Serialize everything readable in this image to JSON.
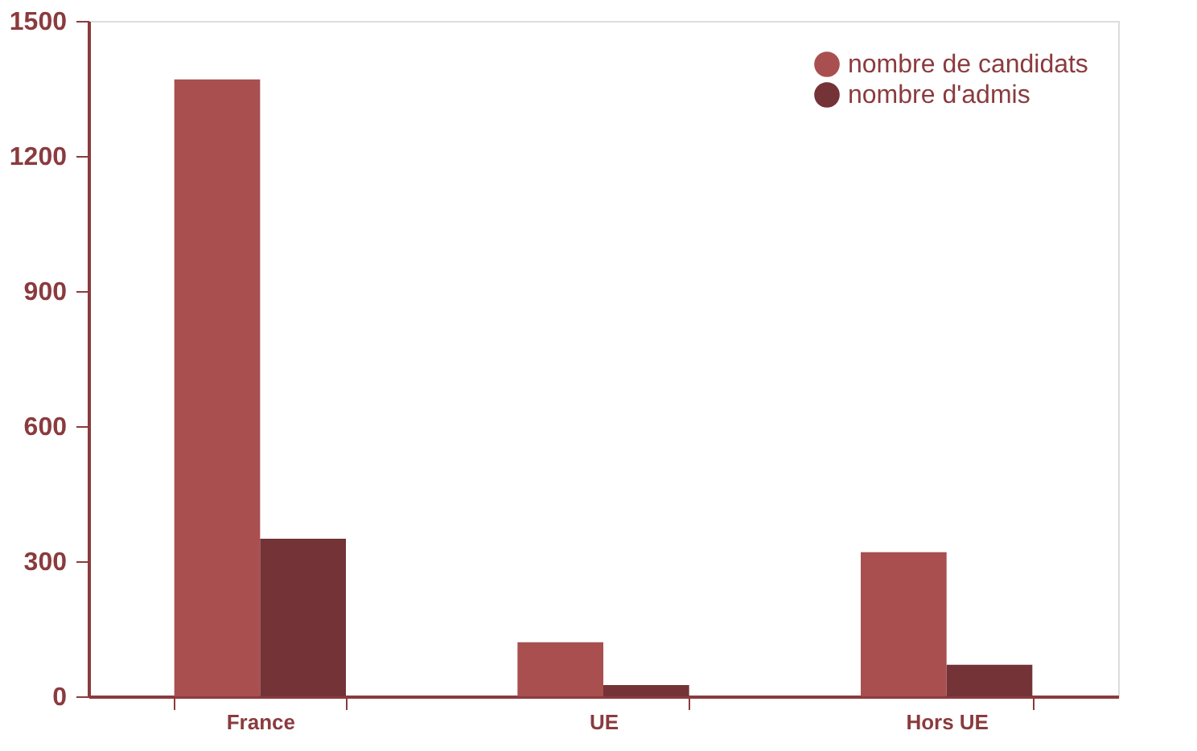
{
  "chart_data": {
    "type": "bar",
    "categories": [
      "France",
      "UE",
      "Hors UE"
    ],
    "series": [
      {
        "name": "nombre de candidats",
        "color": "#a94f50",
        "values": [
          1370,
          120,
          320
        ]
      },
      {
        "name": "nombre d'admis",
        "color": "#733337",
        "values": [
          350,
          25,
          70
        ]
      }
    ],
    "ylim": [
      0,
      1500
    ],
    "yticks": [
      0,
      300,
      600,
      900,
      1200,
      1500
    ],
    "grid": false,
    "legend": "top right"
  }
}
